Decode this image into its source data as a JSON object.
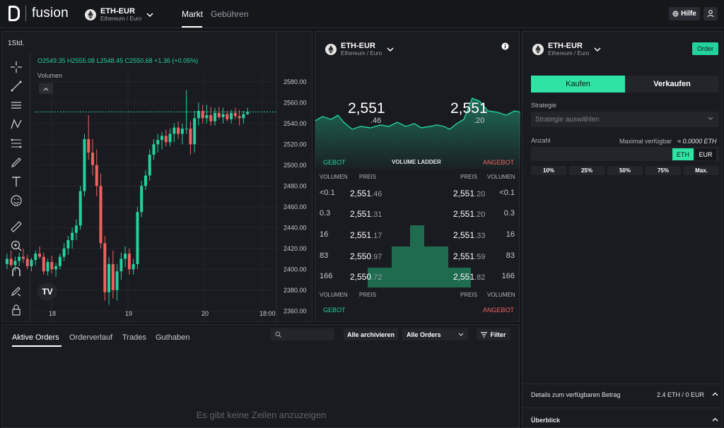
{
  "header": {
    "brand": "fusion",
    "pair": "ETH-EUR",
    "pair_sub": "Ethereum / Euro",
    "nav": [
      "Markt",
      "Gebühren"
    ],
    "help": "Hilfe"
  },
  "chart": {
    "timeframe": "1Std.",
    "ohlc": "O2549.35  H2555.08  L2548.45  C2550.68  +1.36 (+0.05%)",
    "volume_label": "Volumen",
    "price_labels": [
      "2580.00",
      "2560.00",
      "2540.00",
      "2520.00",
      "2500.00",
      "2480.00",
      "2460.00",
      "2440.00",
      "2420.00",
      "2400.00",
      "2380.00",
      "2360.00"
    ],
    "time_labels": [
      "18",
      "19",
      "20",
      "18:00"
    ],
    "logo": "TV"
  },
  "chart_data": {
    "type": "candlestick",
    "ylim": [
      2350,
      2590
    ],
    "candles": [
      [
        2405,
        2415,
        2400,
        2410
      ],
      [
        2410,
        2418,
        2402,
        2404
      ],
      [
        2404,
        2412,
        2398,
        2408
      ],
      [
        2408,
        2416,
        2403,
        2412
      ],
      [
        2412,
        2420,
        2406,
        2410
      ],
      [
        2410,
        2414,
        2400,
        2403
      ],
      [
        2403,
        2411,
        2398,
        2409
      ],
      [
        2409,
        2418,
        2404,
        2415
      ],
      [
        2415,
        2422,
        2410,
        2412
      ],
      [
        2412,
        2416,
        2395,
        2398
      ],
      [
        2398,
        2410,
        2394,
        2407
      ],
      [
        2407,
        2413,
        2396,
        2400
      ],
      [
        2400,
        2406,
        2393,
        2403
      ],
      [
        2403,
        2415,
        2400,
        2412
      ],
      [
        2412,
        2425,
        2408,
        2420
      ],
      [
        2420,
        2432,
        2414,
        2428
      ],
      [
        2428,
        2440,
        2420,
        2435
      ],
      [
        2435,
        2448,
        2428,
        2442
      ],
      [
        2442,
        2480,
        2438,
        2475
      ],
      [
        2475,
        2530,
        2470,
        2525
      ],
      [
        2525,
        2548,
        2505,
        2512
      ],
      [
        2512,
        2525,
        2490,
        2500
      ],
      [
        2500,
        2515,
        2470,
        2480
      ],
      [
        2480,
        2492,
        2420,
        2425
      ],
      [
        2425,
        2432,
        2370,
        2378
      ],
      [
        2378,
        2412,
        2366,
        2405
      ],
      [
        2405,
        2418,
        2372,
        2380
      ],
      [
        2380,
        2405,
        2370,
        2398
      ],
      [
        2398,
        2416,
        2390,
        2410
      ],
      [
        2410,
        2422,
        2402,
        2415
      ],
      [
        2415,
        2420,
        2395,
        2400
      ],
      [
        2400,
        2410,
        2395,
        2405
      ],
      [
        2405,
        2460,
        2400,
        2455
      ],
      [
        2455,
        2485,
        2450,
        2480
      ],
      [
        2480,
        2495,
        2476,
        2490
      ],
      [
        2490,
        2515,
        2485,
        2510
      ],
      [
        2510,
        2525,
        2505,
        2520
      ],
      [
        2520,
        2530,
        2512,
        2524
      ],
      [
        2524,
        2532,
        2515,
        2528
      ],
      [
        2528,
        2534,
        2518,
        2522
      ],
      [
        2522,
        2535,
        2518,
        2530
      ],
      [
        2530,
        2540,
        2522,
        2536
      ],
      [
        2536,
        2542,
        2525,
        2530
      ],
      [
        2530,
        2540,
        2520,
        2535
      ],
      [
        2535,
        2572,
        2530,
        2535
      ],
      [
        2535,
        2542,
        2510,
        2520
      ],
      [
        2520,
        2552,
        2512,
        2545
      ],
      [
        2545,
        2560,
        2538,
        2552
      ],
      [
        2552,
        2558,
        2540,
        2545
      ],
      [
        2545,
        2558,
        2540,
        2548
      ],
      [
        2548,
        2556,
        2538,
        2542
      ],
      [
        2542,
        2555,
        2538,
        2550
      ],
      [
        2550,
        2556,
        2544,
        2546
      ],
      [
        2546,
        2555,
        2540,
        2549
      ],
      [
        2549,
        2552,
        2542,
        2544
      ],
      [
        2544,
        2553,
        2540,
        2550
      ],
      [
        2550,
        2555,
        2544,
        2547
      ],
      [
        2547,
        2553,
        2538,
        2545
      ],
      [
        2545,
        2552,
        2540,
        2549
      ],
      [
        2549,
        2555,
        2548,
        2551
      ]
    ],
    "last_price_line": 2551
  },
  "ladder": {
    "pair": "ETH-EUR",
    "pair_sub": "Ethereum / Euro",
    "bid_big": "2,551",
    "bid_small": ".46",
    "ask_big": "2,551",
    "ask_small": ".20",
    "gebot": "GEBOT",
    "angebot": "ANGEBOT",
    "title": "VOLUME LADDER",
    "vol_h": "VOLUMEN",
    "price_h": "PREIS",
    "rows": [
      {
        "bv": "<0.1",
        "bp": "2,551",
        "bd": ".46",
        "ap": "2,551",
        "ad": ".20",
        "av": "<0.1"
      },
      {
        "bv": "0.3",
        "bp": "2,551",
        "bd": ".31",
        "ap": "2,551",
        "ad": ".20",
        "av": "0.3"
      },
      {
        "bv": "16",
        "bp": "2,551",
        "bd": ".17",
        "ap": "2,551",
        "ad": ".33",
        "av": "16"
      },
      {
        "bv": "83",
        "bp": "2,550",
        "bd": ".97",
        "ap": "2,551",
        "ad": ".59",
        "av": "83"
      },
      {
        "bv": "166",
        "bp": "2,550",
        "bd": ".72",
        "ap": "2,551",
        "ad": ".82",
        "av": "166"
      }
    ]
  },
  "order": {
    "pair": "ETH-EUR",
    "pair_sub": "Ethereum / Euro",
    "order_btn": "Order",
    "buy": "Kaufen",
    "sell": "Verkaufen",
    "strategy_label": "Strategie",
    "strategy_placeholder": "Strategie auswählen",
    "amount_label": "Anzahl",
    "max_label": "Maximal verfügbar",
    "max_value": "≈ 0.0000 ETH",
    "cur_eth": "ETH",
    "cur_eur": "EUR",
    "pcts": [
      "10%",
      "25%",
      "50%",
      "75%",
      "Max."
    ],
    "details_label": "Details zum verfügbaren Betrag",
    "details_value": "2.4 ETH / 0 EUR",
    "overview": "Überblick"
  },
  "orders": {
    "tabs": [
      "Aktive Orders",
      "Orderverlauf",
      "Trades",
      "Guthaben"
    ],
    "archive": "Alle archivieren",
    "filter_select": "Alle Orders",
    "filter": "Filter",
    "empty": "Es gibt keine Zeilen anzuzeigen"
  },
  "colors": {
    "green": "#23d19d",
    "red": "#f06161",
    "bg": "#141519"
  }
}
